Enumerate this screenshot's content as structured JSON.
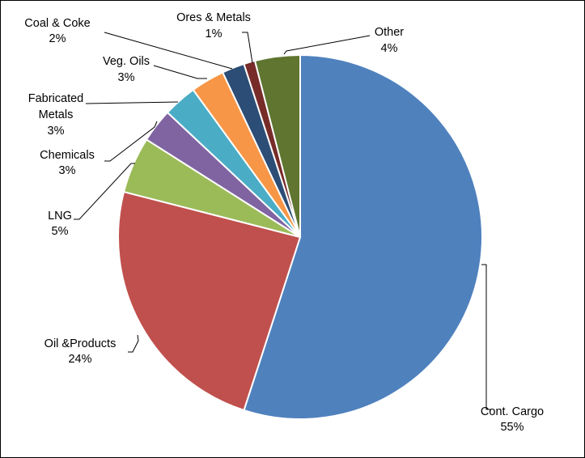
{
  "chart_data": {
    "type": "pie",
    "start_angle_deg": 0,
    "direction": "clockwise",
    "legend": "none",
    "slices": [
      {
        "name": "Cont. Cargo",
        "value": 55,
        "percent_label": "55%",
        "color": "#4F81BD"
      },
      {
        "name": "Oil &Products",
        "value": 24,
        "percent_label": "24%",
        "color": "#C0504D"
      },
      {
        "name": "LNG",
        "value": 5,
        "percent_label": "5%",
        "color": "#9BBB59"
      },
      {
        "name": "Chemicals",
        "value": 3,
        "percent_label": "3%",
        "color": "#8064A2"
      },
      {
        "name": "Fabricated Metals",
        "value": 3,
        "percent_label": "3%",
        "color": "#4BACC6"
      },
      {
        "name": "Veg. Oils",
        "value": 3,
        "percent_label": "3%",
        "color": "#F79646"
      },
      {
        "name": "Coal & Coke",
        "value": 2,
        "percent_label": "2%",
        "color": "#2C4D75"
      },
      {
        "name": "Ores & Metals",
        "value": 1,
        "percent_label": "1%",
        "color": "#772C2A"
      },
      {
        "name": "Other",
        "value": 4,
        "percent_label": "4%",
        "color": "#5F7530"
      }
    ]
  }
}
